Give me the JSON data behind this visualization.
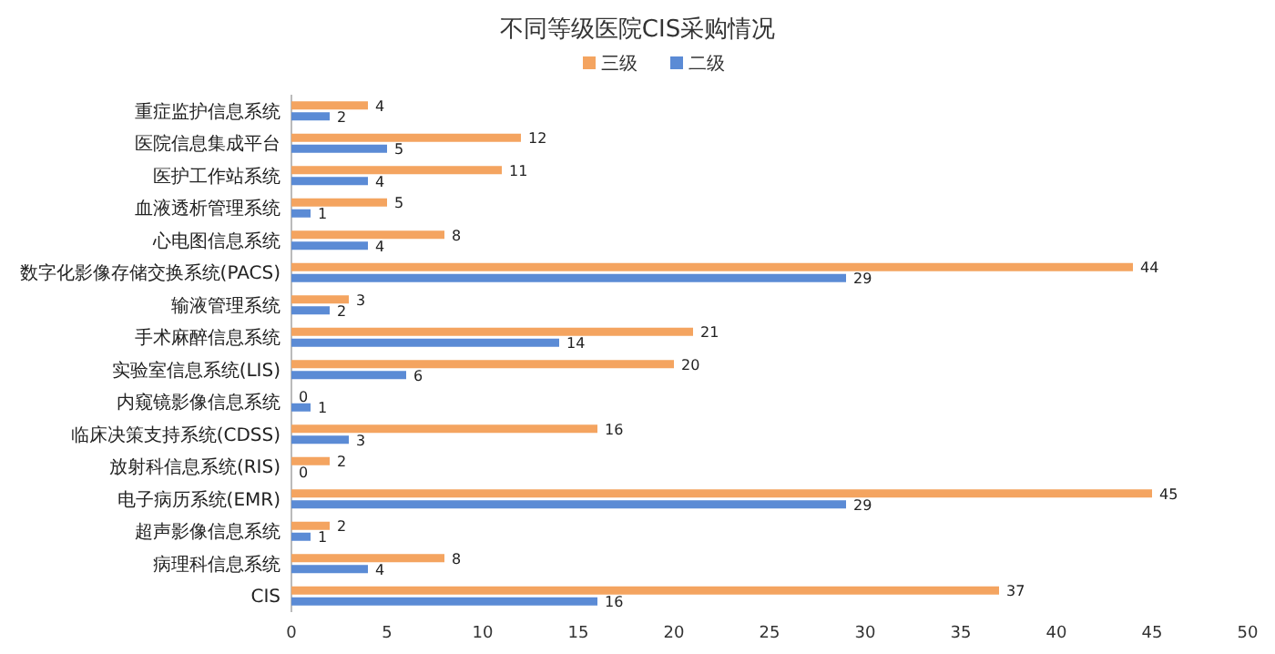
{
  "chart_data": {
    "type": "bar",
    "orientation": "horizontal",
    "title": "不同等级医院CIS采购情况",
    "categories": [
      "重症监护信息系统",
      "医院信息集成平台",
      "医护工作站系统",
      "血液透析管理系统",
      "心电图信息系统",
      "数字化影像存储交换系统(PACS)",
      "输液管理系统",
      "手术麻醉信息系统",
      "实验室信息系统(LIS)",
      "内窥镜影像信息系统",
      "临床决策支持系统(CDSS)",
      "放射科信息系统(RIS)",
      "电子病历系统(EMR)",
      "超声影像信息系统",
      "病理科信息系统",
      "CIS"
    ],
    "series": [
      {
        "name": "三级",
        "color": "#f4a460",
        "values": [
          4,
          12,
          11,
          5,
          8,
          44,
          3,
          21,
          20,
          0,
          16,
          2,
          45,
          2,
          8,
          37
        ]
      },
      {
        "name": "二级",
        "color": "#5b8bd5",
        "values": [
          2,
          5,
          4,
          1,
          4,
          29,
          2,
          14,
          6,
          1,
          3,
          0,
          29,
          1,
          4,
          16
        ]
      }
    ],
    "xlim": [
      0,
      50
    ],
    "xticks": [
      0,
      5,
      10,
      15,
      20,
      25,
      30,
      35,
      40,
      45,
      50
    ],
    "legend": "top",
    "grid": false,
    "data_labels": true
  }
}
